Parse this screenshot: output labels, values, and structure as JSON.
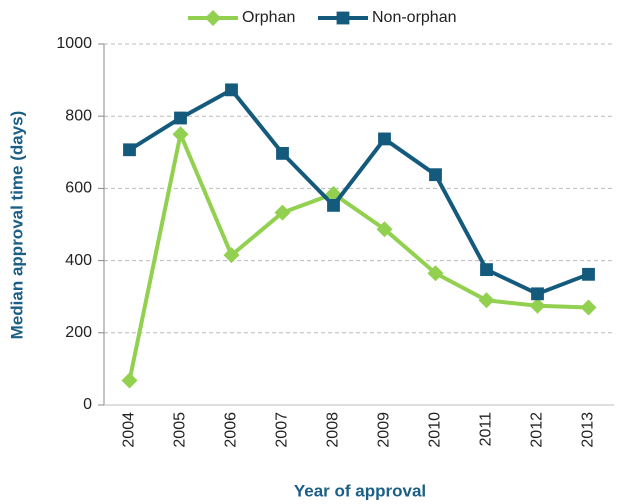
{
  "chart_data": {
    "type": "line",
    "categories": [
      "2004",
      "2005",
      "2006",
      "2007",
      "2008",
      "2009",
      "2010",
      "2011",
      "2012",
      "2013"
    ],
    "series": [
      {
        "name": "Orphan",
        "color": "#92d050",
        "marker": "diamond",
        "values": [
          68,
          750,
          415,
          533,
          585,
          487,
          365,
          290,
          275,
          270
        ]
      },
      {
        "name": "Non-orphan",
        "color": "#145a7d",
        "marker": "square",
        "values": [
          707,
          795,
          873,
          697,
          553,
          737,
          638,
          375,
          308,
          362
        ]
      }
    ],
    "xlabel": "Year of approval",
    "ylabel": "Median approval time (days)",
    "ylim": [
      0,
      1000
    ],
    "yticks": [
      0,
      200,
      400,
      600,
      800,
      1000
    ],
    "grid": true,
    "legend": "top"
  }
}
